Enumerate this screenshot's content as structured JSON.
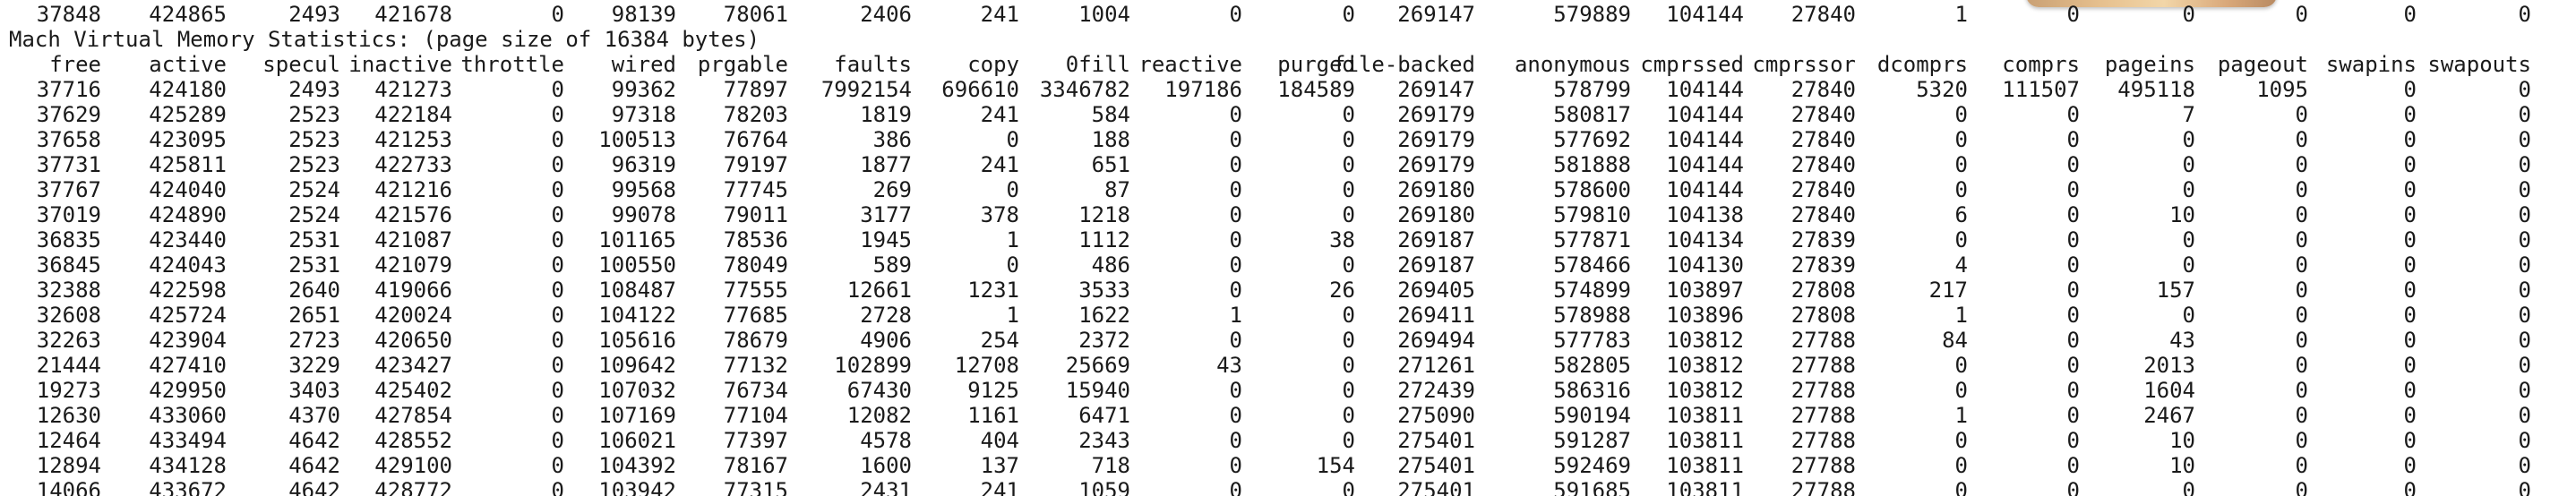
{
  "title": "Mach Virtual Memory Statistics: (page size of 16384 bytes)",
  "prev_row": [
    "37848",
    "424865",
    "2493",
    "421678",
    "0",
    "98139",
    "78061",
    "2406",
    "241",
    "1004",
    "0",
    "0",
    "269147",
    "579889",
    "104144",
    "27840",
    "1",
    "0",
    "0",
    "0",
    "0",
    "0"
  ],
  "headers": [
    "free",
    "active",
    "specul",
    "inactive",
    "throttle",
    "wired",
    "prgable",
    "faults",
    "copy",
    "0fill",
    "reactive",
    "purged",
    "file-backed",
    "anonymous",
    "cmprssed",
    "cmprssor",
    "dcomprs",
    "comprs",
    "pageins",
    "pageout",
    "swapins",
    "swapouts"
  ],
  "rows": [
    [
      "37716",
      "424180",
      "2493",
      "421273",
      "0",
      "99362",
      "77897",
      "7992154",
      "696610",
      "3346782",
      "197186",
      "184589",
      "269147",
      "578799",
      "104144",
      "27840",
      "5320",
      "111507",
      "495118",
      "1095",
      "0",
      "0"
    ],
    [
      "37629",
      "425289",
      "2523",
      "422184",
      "0",
      "97318",
      "78203",
      "1819",
      "241",
      "584",
      "0",
      "0",
      "269179",
      "580817",
      "104144",
      "27840",
      "0",
      "0",
      "7",
      "0",
      "0",
      "0"
    ],
    [
      "37658",
      "423095",
      "2523",
      "421253",
      "0",
      "100513",
      "76764",
      "386",
      "0",
      "188",
      "0",
      "0",
      "269179",
      "577692",
      "104144",
      "27840",
      "0",
      "0",
      "0",
      "0",
      "0",
      "0"
    ],
    [
      "37731",
      "425811",
      "2523",
      "422733",
      "0",
      "96319",
      "79197",
      "1877",
      "241",
      "651",
      "0",
      "0",
      "269179",
      "581888",
      "104144",
      "27840",
      "0",
      "0",
      "0",
      "0",
      "0",
      "0"
    ],
    [
      "37767",
      "424040",
      "2524",
      "421216",
      "0",
      "99568",
      "77745",
      "269",
      "0",
      "87",
      "0",
      "0",
      "269180",
      "578600",
      "104144",
      "27840",
      "0",
      "0",
      "0",
      "0",
      "0",
      "0"
    ],
    [
      "37019",
      "424890",
      "2524",
      "421576",
      "0",
      "99078",
      "79011",
      "3177",
      "378",
      "1218",
      "0",
      "0",
      "269180",
      "579810",
      "104138",
      "27840",
      "6",
      "0",
      "10",
      "0",
      "0",
      "0"
    ],
    [
      "36835",
      "423440",
      "2531",
      "421087",
      "0",
      "101165",
      "78536",
      "1945",
      "1",
      "1112",
      "0",
      "38",
      "269187",
      "577871",
      "104134",
      "27839",
      "0",
      "0",
      "0",
      "0",
      "0",
      "0"
    ],
    [
      "36845",
      "424043",
      "2531",
      "421079",
      "0",
      "100550",
      "78049",
      "589",
      "0",
      "486",
      "0",
      "0",
      "269187",
      "578466",
      "104130",
      "27839",
      "4",
      "0",
      "0",
      "0",
      "0",
      "0"
    ],
    [
      "32388",
      "422598",
      "2640",
      "419066",
      "0",
      "108487",
      "77555",
      "12661",
      "1231",
      "3533",
      "0",
      "26",
      "269405",
      "574899",
      "103897",
      "27808",
      "217",
      "0",
      "157",
      "0",
      "0",
      "0"
    ],
    [
      "32608",
      "425724",
      "2651",
      "420024",
      "0",
      "104122",
      "77685",
      "2728",
      "1",
      "1622",
      "1",
      "0",
      "269411",
      "578988",
      "103896",
      "27808",
      "1",
      "0",
      "0",
      "0",
      "0",
      "0"
    ],
    [
      "32263",
      "423904",
      "2723",
      "420650",
      "0",
      "105616",
      "78679",
      "4906",
      "254",
      "2372",
      "0",
      "0",
      "269494",
      "577783",
      "103812",
      "27788",
      "84",
      "0",
      "43",
      "0",
      "0",
      "0"
    ],
    [
      "21444",
      "427410",
      "3229",
      "423427",
      "0",
      "109642",
      "77132",
      "102899",
      "12708",
      "25669",
      "43",
      "0",
      "271261",
      "582805",
      "103812",
      "27788",
      "0",
      "0",
      "2013",
      "0",
      "0",
      "0"
    ],
    [
      "19273",
      "429950",
      "3403",
      "425402",
      "0",
      "107032",
      "76734",
      "67430",
      "9125",
      "15940",
      "0",
      "0",
      "272439",
      "586316",
      "103812",
      "27788",
      "0",
      "0",
      "1604",
      "0",
      "0",
      "0"
    ],
    [
      "12630",
      "433060",
      "4370",
      "427854",
      "0",
      "107169",
      "77104",
      "12082",
      "1161",
      "6471",
      "0",
      "0",
      "275090",
      "590194",
      "103811",
      "27788",
      "1",
      "0",
      "2467",
      "0",
      "0",
      "0"
    ],
    [
      "12464",
      "433494",
      "4642",
      "428552",
      "0",
      "106021",
      "77397",
      "4578",
      "404",
      "2343",
      "0",
      "0",
      "275401",
      "591287",
      "103811",
      "27788",
      "0",
      "0",
      "10",
      "0",
      "0",
      "0"
    ],
    [
      "12894",
      "434128",
      "4642",
      "429100",
      "0",
      "104392",
      "78167",
      "1600",
      "137",
      "718",
      "0",
      "154",
      "275401",
      "592469",
      "103811",
      "27788",
      "0",
      "0",
      "10",
      "0",
      "0",
      "0"
    ],
    [
      "14066",
      "433672",
      "4642",
      "428772",
      "0",
      "103942",
      "77315",
      "2431",
      "241",
      "1059",
      "0",
      "0",
      "275401",
      "591685",
      "103811",
      "27788",
      "0",
      "0",
      "0",
      "0",
      "0",
      "0"
    ]
  ]
}
